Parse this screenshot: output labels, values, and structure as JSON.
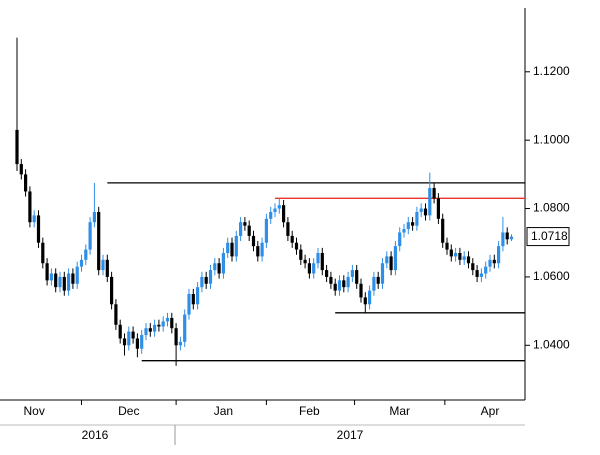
{
  "chart_data": {
    "type": "candlestick",
    "up_color": "#2f8fe8",
    "down_color": "#000000",
    "ylim": [
      1.024,
      1.141
    ],
    "yticks": [
      {
        "value": 1.04,
        "label": "1.0400"
      },
      {
        "value": 1.06,
        "label": "1.0600"
      },
      {
        "value": 1.08,
        "label": "1.0800"
      },
      {
        "value": 1.1,
        "label": "1.1000"
      },
      {
        "value": 1.12,
        "label": "1.1200"
      }
    ],
    "categories": [
      null,
      null,
      null,
      null,
      "Nov",
      null,
      null,
      null,
      null,
      null,
      null,
      null,
      null,
      null,
      null,
      null,
      null,
      null,
      null,
      null,
      null,
      null,
      null,
      null,
      null,
      null,
      "Dec",
      null,
      null,
      null,
      null,
      null,
      null,
      null,
      null,
      null,
      null,
      null,
      null,
      null,
      null,
      null,
      null,
      null,
      null,
      null,
      null,
      null,
      "Jan",
      null,
      null,
      null,
      null,
      null,
      null,
      null,
      null,
      null,
      null,
      null,
      null,
      null,
      null,
      null,
      null,
      null,
      null,
      null,
      "Feb",
      null,
      null,
      null,
      null,
      null,
      null,
      null,
      null,
      null,
      null,
      null,
      null,
      null,
      null,
      null,
      null,
      null,
      null,
      null,
      null,
      "Mar",
      null,
      null,
      null,
      null,
      null,
      null,
      null,
      null,
      null,
      null,
      null,
      null,
      null,
      null,
      null,
      null,
      null,
      null,
      null,
      null,
      "Apr",
      null,
      null,
      null,
      null,
      null
    ],
    "years": [
      "2016",
      "2017"
    ],
    "open": [
      1.103,
      1.093,
      1.09,
      1.085,
      1.076,
      1.078,
      1.07,
      1.064,
      1.059,
      1.061,
      1.057,
      1.06,
      1.056,
      1.061,
      1.058,
      1.063,
      1.065,
      1.068,
      1.076,
      1.079,
      1.062,
      1.065,
      1.06,
      1.052,
      1.046,
      1.042,
      1.04,
      1.044,
      1.042,
      1.039,
      1.043,
      1.045,
      1.044,
      1.046,
      1.0455,
      1.047,
      1.048,
      1.045,
      1.04,
      1.041,
      1.049,
      1.055,
      1.052,
      1.057,
      1.06,
      1.058,
      1.062,
      1.064,
      1.061,
      1.067,
      1.07,
      1.066,
      1.072,
      1.076,
      1.075,
      1.072,
      1.069,
      1.066,
      1.07,
      1.077,
      1.079,
      1.08,
      1.081,
      1.076,
      1.072,
      1.07,
      1.068,
      1.065,
      1.064,
      1.061,
      1.064,
      1.067,
      1.062,
      1.06,
      1.058,
      1.056,
      1.059,
      1.057,
      1.06,
      1.062,
      1.058,
      1.054,
      1.052,
      1.056,
      1.06,
      1.058,
      1.064,
      1.066,
      1.062,
      1.069,
      1.073,
      1.074,
      1.076,
      1.075,
      1.079,
      1.08,
      1.078,
      1.086,
      1.083,
      1.077,
      1.07,
      1.068,
      1.066,
      1.067,
      1.065,
      1.066,
      1.064,
      1.062,
      1.06,
      1.061,
      1.063,
      1.065,
      1.064,
      1.069,
      1.073,
      1.071
    ],
    "high": [
      1.13,
      1.0945,
      1.0915,
      1.0865,
      1.0795,
      1.0795,
      1.0715,
      1.0655,
      1.0625,
      1.0625,
      1.0615,
      1.0615,
      1.0625,
      1.0625,
      1.0645,
      1.0665,
      1.0695,
      1.0775,
      1.0875,
      1.0805,
      1.0665,
      1.0665,
      1.0615,
      1.0535,
      1.0475,
      1.0435,
      1.0455,
      1.0455,
      1.0435,
      1.0445,
      1.0465,
      1.0465,
      1.0475,
      1.0475,
      1.0485,
      1.0495,
      1.0495,
      1.0465,
      1.0425,
      1.0505,
      1.0565,
      1.0565,
      1.0585,
      1.0615,
      1.0615,
      1.0635,
      1.0655,
      1.0655,
      1.0685,
      1.0715,
      1.0715,
      1.0735,
      1.0775,
      1.0775,
      1.0765,
      1.0735,
      1.0705,
      1.0715,
      1.0785,
      1.0805,
      1.0815,
      1.083,
      1.0825,
      1.0775,
      1.0735,
      1.0715,
      1.0695,
      1.0665,
      1.0655,
      1.0655,
      1.0685,
      1.0685,
      1.0635,
      1.0615,
      1.0595,
      1.0605,
      1.0605,
      1.0615,
      1.0635,
      1.0635,
      1.0595,
      1.0555,
      1.0575,
      1.0615,
      1.0615,
      1.0655,
      1.0675,
      1.0675,
      1.0705,
      1.0745,
      1.0755,
      1.0775,
      1.0775,
      1.0805,
      1.0815,
      1.0815,
      1.0905,
      1.0875,
      1.0845,
      1.0785,
      1.0715,
      1.0695,
      1.0685,
      1.0685,
      1.0675,
      1.0675,
      1.0655,
      1.0635,
      1.0625,
      1.0645,
      1.0665,
      1.0665,
      1.0705,
      1.0775,
      1.0745,
      1.0725
    ],
    "low": [
      1.091,
      1.0885,
      1.0835,
      1.0745,
      1.0745,
      1.0685,
      1.0625,
      1.0575,
      1.0575,
      1.0555,
      1.0555,
      1.0545,
      1.0545,
      1.0565,
      1.0565,
      1.0615,
      1.0635,
      1.0665,
      1.0745,
      1.0605,
      1.0605,
      1.0585,
      1.0505,
      1.0445,
      1.0405,
      1.037,
      1.0385,
      1.0405,
      1.0365,
      1.0375,
      1.0415,
      1.0425,
      1.0425,
      1.044,
      1.044,
      1.0455,
      1.0435,
      1.034,
      1.0385,
      1.0395,
      1.0475,
      1.0505,
      1.0505,
      1.0555,
      1.0565,
      1.0565,
      1.0605,
      1.0595,
      1.0595,
      1.0655,
      1.0645,
      1.0645,
      1.0705,
      1.0735,
      1.0705,
      1.0675,
      1.0645,
      1.0645,
      1.0685,
      1.0755,
      1.0775,
      1.0785,
      1.0745,
      1.0705,
      1.0685,
      1.0665,
      1.0635,
      1.0625,
      1.0595,
      1.0595,
      1.0625,
      1.0605,
      1.0585,
      1.0565,
      1.0545,
      1.0545,
      1.0555,
      1.0555,
      1.0585,
      1.0565,
      1.0525,
      1.0495,
      1.0505,
      1.0545,
      1.0565,
      1.0565,
      1.0625,
      1.0605,
      1.0605,
      1.0675,
      1.0715,
      1.0725,
      1.0735,
      1.0735,
      1.0775,
      1.0765,
      1.0765,
      1.0815,
      1.0755,
      1.0685,
      1.0665,
      1.0645,
      1.0645,
      1.0635,
      1.0635,
      1.0625,
      1.0605,
      1.0585,
      1.0585,
      1.0595,
      1.0615,
      1.0625,
      1.0625,
      1.0675,
      1.0695,
      1.0705
    ],
    "close": [
      1.093,
      1.09,
      1.085,
      1.076,
      1.078,
      1.07,
      1.064,
      1.059,
      1.061,
      1.057,
      1.06,
      1.056,
      1.061,
      1.058,
      1.063,
      1.065,
      1.068,
      1.076,
      1.079,
      1.062,
      1.065,
      1.06,
      1.052,
      1.046,
      1.042,
      1.04,
      1.044,
      1.042,
      1.039,
      1.043,
      1.045,
      1.044,
      1.046,
      1.0455,
      1.047,
      1.048,
      1.045,
      1.04,
      1.041,
      1.049,
      1.055,
      1.052,
      1.057,
      1.06,
      1.058,
      1.062,
      1.064,
      1.061,
      1.067,
      1.07,
      1.066,
      1.072,
      1.076,
      1.075,
      1.072,
      1.069,
      1.066,
      1.07,
      1.077,
      1.079,
      1.08,
      1.081,
      1.076,
      1.072,
      1.07,
      1.068,
      1.065,
      1.064,
      1.061,
      1.064,
      1.067,
      1.062,
      1.06,
      1.058,
      1.056,
      1.059,
      1.057,
      1.06,
      1.062,
      1.058,
      1.054,
      1.052,
      1.056,
      1.06,
      1.058,
      1.064,
      1.066,
      1.062,
      1.069,
      1.073,
      1.074,
      1.076,
      1.075,
      1.079,
      1.08,
      1.078,
      1.086,
      1.083,
      1.077,
      1.07,
      1.068,
      1.066,
      1.067,
      1.065,
      1.066,
      1.064,
      1.062,
      1.06,
      1.061,
      1.063,
      1.065,
      1.064,
      1.069,
      1.073,
      1.071,
      1.0718
    ],
    "last_price_label": "1.0718",
    "levels": [
      {
        "value": 1.0875,
        "start": 21,
        "color": "#000000"
      },
      {
        "value": 1.083,
        "start": 60,
        "color": "#e8322a"
      },
      {
        "value": 1.0495,
        "start": 74,
        "color": "#000000"
      },
      {
        "value": 1.0355,
        "start": 29,
        "color": "#000000"
      }
    ]
  }
}
